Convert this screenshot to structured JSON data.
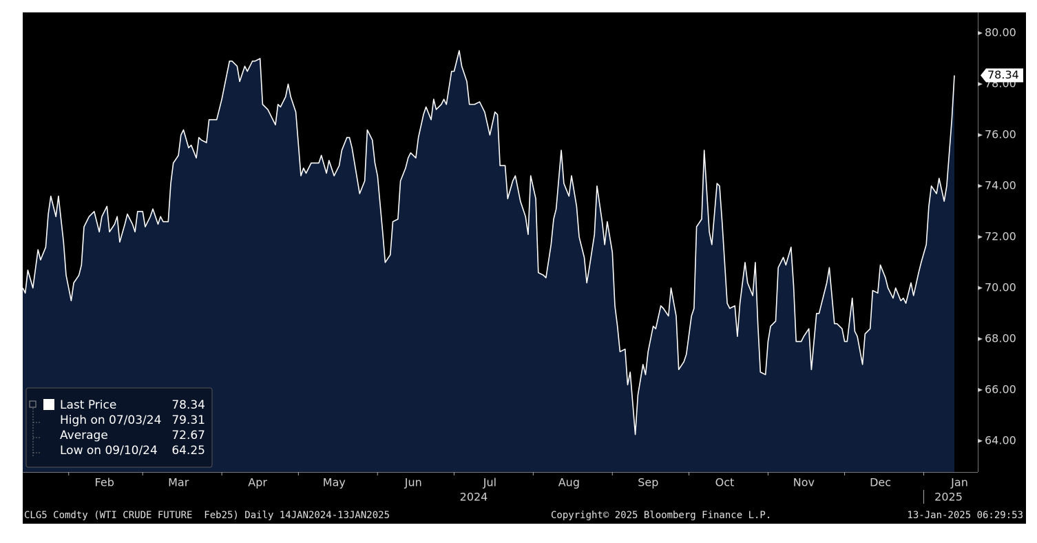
{
  "chart_data": {
    "type": "area",
    "series": [
      {
        "color": "#ffffff",
        "fill": "#0e1d3a",
        "x": [
          0,
          1,
          2,
          4,
          6,
          7,
          9,
          10,
          11,
          13,
          14,
          16,
          17,
          19,
          20,
          22,
          23,
          24,
          26,
          27,
          28,
          30,
          31,
          33,
          34,
          36,
          37,
          38,
          40,
          41,
          43,
          44,
          45,
          47,
          48,
          50,
          51,
          53,
          54,
          55,
          57,
          58,
          59,
          61,
          62,
          63,
          65,
          66,
          68,
          69,
          70,
          72,
          73,
          75,
          76,
          78,
          79,
          81,
          82,
          84,
          85,
          87,
          88,
          90,
          91,
          93,
          94,
          96,
          97,
          99,
          100,
          101,
          103,
          104,
          105,
          107,
          109,
          110,
          111,
          113,
          114,
          116,
          117,
          119,
          120,
          122,
          124,
          125,
          127,
          128,
          129,
          131,
          132,
          134,
          135,
          137,
          138,
          139,
          141,
          142,
          144,
          145,
          147,
          148,
          150,
          151,
          152,
          154,
          155,
          157,
          158,
          160,
          161,
          162,
          164,
          165,
          166,
          168,
          169,
          171,
          172,
          174,
          175,
          177,
          179,
          180,
          181,
          183,
          185,
          186,
          187,
          189,
          190,
          192,
          193,
          195,
          197,
          198,
          199,
          201,
          202,
          204,
          205,
          207,
          208,
          209,
          211,
          212,
          214,
          215,
          217,
          218,
          220,
          221,
          222,
          224,
          225,
          227,
          228,
          229,
          231,
          232,
          233,
          234,
          236,
          237,
          238,
          240,
          241,
          243,
          244,
          245,
          247,
          248,
          250,
          251,
          253,
          254,
          256,
          257,
          259,
          260,
          262,
          263,
          264,
          266,
          267,
          269,
          270,
          272,
          273,
          274,
          276,
          277,
          279,
          280,
          281,
          283,
          284,
          286,
          287,
          288,
          289,
          291,
          292,
          293,
          295,
          296,
          298,
          299,
          301,
          302,
          303,
          305,
          306,
          308,
          309,
          311,
          312,
          313,
          315,
          316,
          318,
          319,
          321,
          322,
          323,
          325,
          326,
          327,
          329,
          330,
          332,
          333,
          335,
          336,
          338,
          339,
          341,
          342,
          344,
          345,
          346,
          348,
          349,
          351,
          352,
          354,
          355,
          356,
          358,
          359,
          361,
          362,
          364,
          365
        ],
        "values": [
          70.0,
          69.8,
          70.7,
          70.0,
          71.5,
          71.1,
          71.6,
          72.9,
          73.6,
          72.8,
          73.6,
          71.8,
          70.5,
          69.5,
          70.2,
          70.5,
          70.9,
          72.4,
          72.8,
          72.9,
          73.0,
          72.2,
          72.8,
          73.2,
          72.2,
          72.5,
          72.8,
          71.8,
          72.5,
          72.9,
          72.5,
          72.2,
          73.0,
          73.0,
          72.4,
          72.8,
          73.1,
          72.5,
          72.8,
          72.6,
          72.6,
          74.1,
          74.9,
          75.2,
          76.0,
          76.2,
          75.5,
          75.6,
          75.1,
          75.9,
          75.8,
          75.7,
          76.6,
          76.6,
          76.6,
          77.4,
          77.9,
          78.9,
          78.9,
          78.7,
          78.1,
          78.7,
          78.5,
          78.9,
          78.9,
          79.0,
          77.2,
          77.0,
          76.8,
          76.4,
          77.2,
          77.1,
          77.5,
          78.0,
          77.5,
          76.9,
          74.4,
          74.7,
          74.5,
          74.9,
          74.9,
          74.9,
          75.2,
          74.5,
          75.0,
          74.4,
          74.8,
          75.4,
          75.9,
          75.9,
          75.5,
          74.3,
          73.7,
          74.2,
          76.2,
          75.8,
          74.9,
          74.4,
          72.2,
          71.0,
          71.3,
          72.6,
          72.7,
          74.2,
          74.7,
          75.1,
          75.3,
          75.1,
          75.9,
          76.8,
          77.1,
          76.6,
          77.4,
          77.0,
          77.2,
          77.4,
          77.2,
          78.5,
          78.5,
          79.31,
          78.7,
          78.1,
          77.2,
          77.2,
          77.3,
          77.1,
          76.9,
          76.0,
          76.9,
          76.8,
          74.8,
          74.8,
          73.5,
          74.2,
          74.4,
          73.4,
          72.8,
          72.1,
          74.4,
          73.5,
          70.6,
          70.5,
          70.4,
          71.7,
          72.7,
          73.1,
          75.4,
          74.1,
          73.6,
          74.4,
          73.2,
          72.0,
          71.2,
          70.2,
          70.8,
          72.1,
          74.0,
          72.6,
          71.7,
          72.6,
          71.4,
          69.3,
          68.5,
          67.5,
          67.6,
          66.2,
          66.7,
          64.25,
          65.8,
          67.0,
          66.6,
          67.5,
          68.5,
          68.4,
          69.3,
          69.2,
          68.9,
          70.0,
          68.9,
          66.8,
          67.1,
          67.4,
          68.9,
          69.2,
          72.4,
          72.7,
          75.4,
          72.2,
          71.7,
          74.1,
          74.0,
          72.6,
          69.4,
          69.2,
          69.3,
          68.1,
          69.4,
          71.0,
          70.2,
          69.7,
          71.0,
          68.6,
          66.7,
          66.6,
          67.9,
          68.5,
          68.7,
          70.8,
          71.2,
          70.9,
          71.6,
          70.1,
          67.9,
          67.9,
          68.1,
          68.4,
          66.8,
          69.0,
          69.0,
          69.4,
          70.2,
          70.8,
          68.6,
          68.6,
          68.4,
          67.9,
          67.9,
          69.6,
          68.3,
          68.1,
          67.0,
          68.2,
          68.4,
          69.9,
          69.8,
          70.9,
          70.4,
          70.0,
          69.6,
          70.0,
          69.5,
          69.6,
          69.4,
          70.2,
          69.7,
          70.6,
          71.0,
          71.7,
          73.2,
          74.0,
          73.7,
          74.3,
          73.4,
          74.0,
          76.6,
          78.34
        ]
      }
    ],
    "xlim": [
      0,
      365
    ],
    "xticks": [
      {
        "value": 18,
        "label": "Feb"
      },
      {
        "value": 47,
        "label": "Mar"
      },
      {
        "value": 78,
        "label": "Apr"
      },
      {
        "value": 108,
        "label": "May"
      },
      {
        "value": 139,
        "label": "Jun"
      },
      {
        "value": 169,
        "label": "Jul"
      },
      {
        "value": 200,
        "label": "Aug"
      },
      {
        "value": 231,
        "label": "Sep"
      },
      {
        "value": 261,
        "label": "Oct"
      },
      {
        "value": 292,
        "label": "Nov"
      },
      {
        "value": 322,
        "label": "Dec"
      },
      {
        "value": 353,
        "label": "Jan"
      }
    ],
    "year_labels": [
      "2024",
      "2025"
    ],
    "ylim": [
      62.78,
      80.81
    ],
    "yticks": [
      {
        "value": 64,
        "label": "64.00"
      },
      {
        "value": 66,
        "label": "66.00"
      },
      {
        "value": 68,
        "label": "68.00"
      },
      {
        "value": 70,
        "label": "70.00"
      },
      {
        "value": 72,
        "label": "72.00"
      },
      {
        "value": 74,
        "label": "74.00"
      },
      {
        "value": 76,
        "label": "76.00"
      },
      {
        "value": 78,
        "label": "78.00"
      },
      {
        "value": 80,
        "label": "80.00"
      }
    ],
    "legend": [
      {
        "label": "Last Price",
        "value": 78.34
      },
      {
        "label": "High on 07/03/24",
        "value": 79.31
      },
      {
        "label": "Average",
        "value": 72.67
      },
      {
        "label": "Low on 09/10/24",
        "value": 64.25
      }
    ],
    "footer": {
      "source": "CLG5 Comdty (WTI CRUDE FUTURE  Feb25) Daily 14JAN2024-13JAN2025",
      "copyright": "Copyright© 2025 Bloomberg Finance L.P.",
      "timestamp": "13-Jan-2025 06:29:53"
    }
  }
}
